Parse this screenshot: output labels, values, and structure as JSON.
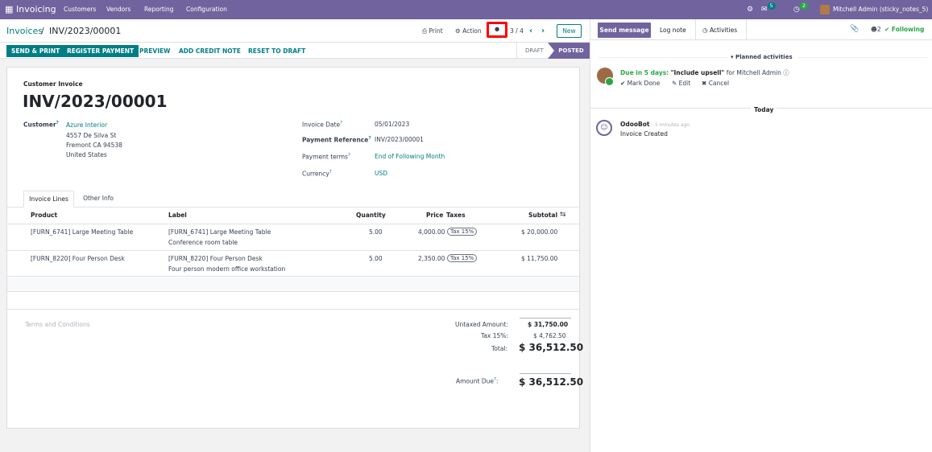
{
  "topbar": {
    "app_name": "Invoicing",
    "menu": [
      "Customers",
      "Vendors",
      "Reporting",
      "Configuration"
    ],
    "messages_count": "5",
    "activities_count": "2",
    "user_name": "Mitchell Admin (sticky_notes_5)"
  },
  "control": {
    "breadcrumb_parent": "Invoices",
    "breadcrumb_sep": "/",
    "breadcrumb_current": "INV/2023/00001",
    "print": "Print",
    "action": "Action",
    "pager": "3 / 4",
    "new_label": "New"
  },
  "buttons": {
    "send_print": "SEND & PRINT",
    "register_payment": "REGISTER PAYMENT",
    "preview": "PREVIEW",
    "add_credit_note": "ADD CREDIT NOTE",
    "reset_to_draft": "RESET TO DRAFT",
    "status_draft": "DRAFT",
    "status_posted": "POSTED"
  },
  "invoice": {
    "type_label": "Customer Invoice",
    "number": "INV/2023/00001",
    "customer_label": "Customer",
    "customer_name": "Azure Interior",
    "address_1": "4557 De Silva St",
    "address_2": "Fremont CA 94538",
    "address_3": "United States",
    "invoice_date_label": "Invoice Date",
    "invoice_date": "05/01/2023",
    "payment_ref_label": "Payment Reference",
    "payment_ref": "INV/2023/00001",
    "payment_terms_label": "Payment terms",
    "payment_terms": "End of Following Month",
    "currency_label": "Currency",
    "currency": "USD"
  },
  "tabs": [
    "Invoice Lines",
    "Other Info"
  ],
  "table": {
    "headers": {
      "product": "Product",
      "label": "Label",
      "quantity": "Quantity",
      "price": "Price",
      "taxes": "Taxes",
      "subtotal": "Subtotal"
    },
    "rows": [
      {
        "product": "[FURN_6741] Large Meeting Table",
        "label1": "[FURN_6741] Large Meeting Table",
        "label2": "Conference room table",
        "quantity": "5.00",
        "price": "4,000.00",
        "tax": "Tax 15%",
        "subtotal": "$ 20,000.00"
      },
      {
        "product": "[FURN_8220] Four Person Desk",
        "label1": "[FURN_8220] Four Person Desk",
        "label2": "Four person modern office workstation",
        "quantity": "5.00",
        "price": "2,350.00",
        "tax": "Tax 15%",
        "subtotal": "$ 11,750.00"
      }
    ]
  },
  "totals": {
    "terms_placeholder": "Terms and Conditions",
    "untaxed_label": "Untaxed Amount:",
    "untaxed": "$ 31,750.00",
    "tax_label": "Tax 15%:",
    "tax": "$ 4,762.50",
    "total_label": "Total:",
    "total": "$ 36,512.50",
    "amount_due_label": "Amount Due",
    "amount_due": "$ 36,512.50"
  },
  "chatter": {
    "send_message": "Send message",
    "log_note": "Log note",
    "activities": "Activities",
    "followers_count": "2",
    "following": "Following",
    "planned_activities": "Planned activities",
    "due_text": "Due in 5 days:",
    "activity_title": "\"Include upsell\"",
    "activity_for": "for Mitchell Admin",
    "mark_done": "Mark Done",
    "edit": "Edit",
    "cancel": "Cancel",
    "today": "Today",
    "author": "OdooBot",
    "time": "- 5 minutes ago",
    "message": "Invoice Created"
  },
  "colors": {
    "topbar": "#71639e",
    "primary": "#017e84",
    "highlight": "#ff0000",
    "success": "#28a745"
  }
}
